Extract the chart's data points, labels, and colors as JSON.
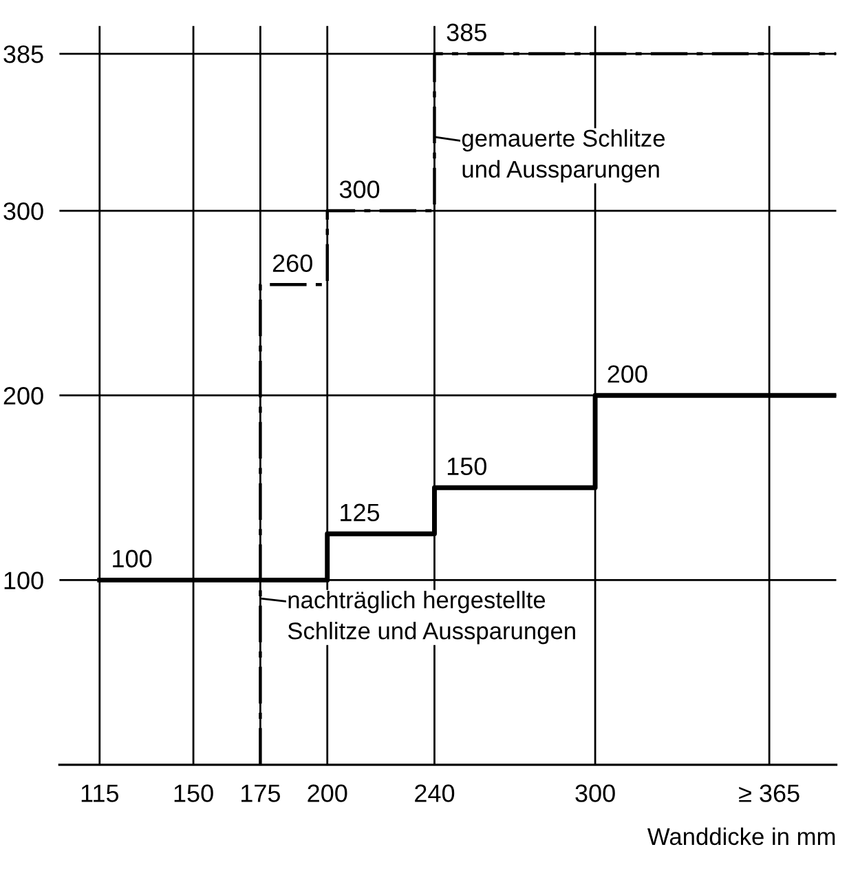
{
  "chart_data": {
    "type": "step",
    "xlabel": "Wanddicke in mm",
    "xlim": [
      100,
      390
    ],
    "xticks": [
      115,
      150,
      175,
      200,
      240,
      300,
      {
        "value": 365,
        "label": "≥ 365"
      }
    ],
    "ylim": [
      0,
      400
    ],
    "yticks": [
      100,
      200,
      300,
      385
    ],
    "grid": true,
    "series": [
      {
        "color": "#000000",
        "line_style": "solid",
        "x": [
          115,
          200,
          240,
          300,
          390
        ],
        "values": [
          100,
          125,
          150,
          200,
          200
        ],
        "value_labels": [
          "100",
          "125",
          "150",
          "200",
          null
        ]
      },
      {
        "color": "#000000",
        "line_style": "dashdot",
        "x": [
          175,
          175,
          200,
          240,
          390
        ],
        "values": [
          0,
          260,
          300,
          385,
          385
        ],
        "value_labels": [
          null,
          "260",
          "300",
          "385",
          null
        ]
      }
    ],
    "annotations": [
      {
        "text": "gemauerte Schlitze\nund Aussparungen",
        "x": 240,
        "y": 340
      },
      {
        "text": "nachträglich hergestellte\nSchlitze und Aussparungen",
        "x": 175,
        "y": 90
      }
    ]
  }
}
